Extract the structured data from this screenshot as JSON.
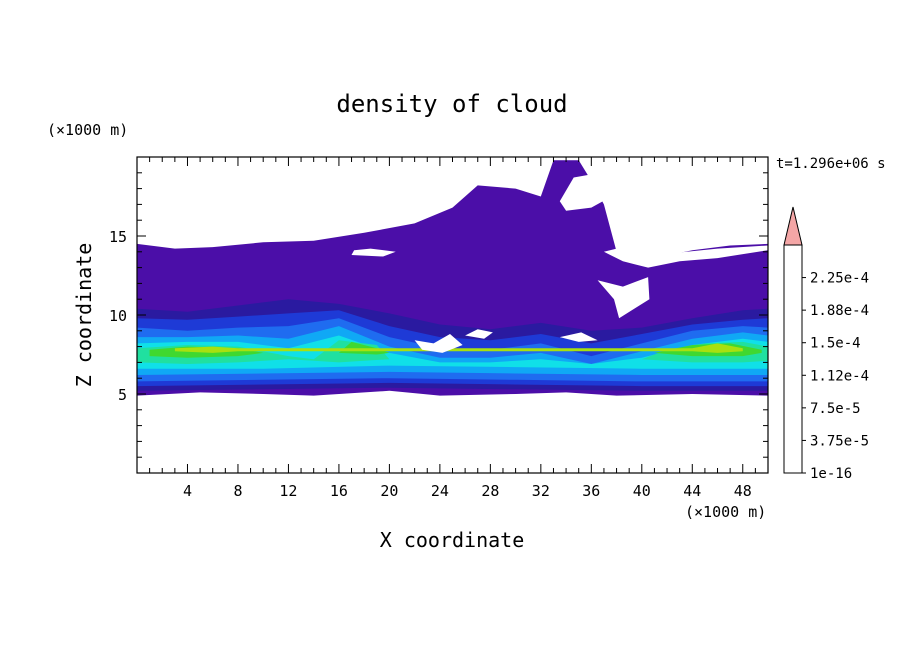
{
  "chart_data": {
    "type": "heatmap",
    "title": "density of cloud",
    "time_label": "t=1.296e+06 s",
    "xlabel": "X coordinate",
    "ylabel": "Z coordinate",
    "x_unit": "(×1000 m)",
    "y_unit": "(×1000 m)",
    "xlim": [
      0,
      50
    ],
    "ylim": [
      0,
      20
    ],
    "x_ticks": [
      "4",
      "8",
      "12",
      "16",
      "20",
      "24",
      "28",
      "32",
      "36",
      "40",
      "44",
      "48"
    ],
    "y_ticks": [
      "5",
      "10",
      "15"
    ],
    "colorbar": {
      "labels": [
        "1e-16",
        "3.75e-5",
        "7.5e-5",
        "1.12e-4",
        "1.5e-4",
        "1.88e-4",
        "2.25e-4"
      ],
      "colors": [
        "#4b0ea8",
        "#2a1aa0",
        "#1e3ad6",
        "#1f6cf0",
        "#10a8f5",
        "#10e0e8",
        "#20e0a0",
        "#40d830",
        "#a8e010",
        "#f0f000",
        "#f8b800",
        "#f88800",
        "#f85800",
        "#f02800"
      ],
      "over_color": "#f4a6a6"
    },
    "layers": [
      {
        "level": 0,
        "color": "#4b0ea8",
        "bottom": [
          [
            0,
            4.9
          ],
          [
            5,
            5.1
          ],
          [
            10,
            5.0
          ],
          [
            14,
            4.9
          ],
          [
            20,
            5.2
          ],
          [
            24,
            4.9
          ],
          [
            30,
            5.0
          ],
          [
            34,
            5.1
          ],
          [
            38,
            4.9
          ],
          [
            44,
            5.0
          ],
          [
            50,
            4.9
          ]
        ],
        "top": [
          [
            0,
            14.5
          ],
          [
            3,
            14.2
          ],
          [
            6,
            14.3
          ],
          [
            10,
            14.6
          ],
          [
            14,
            14.7
          ],
          [
            18,
            15.2
          ],
          [
            22,
            15.8
          ],
          [
            25,
            16.8
          ],
          [
            27,
            18.2
          ],
          [
            30,
            18.0
          ],
          [
            32,
            17.5
          ],
          [
            33,
            19.8
          ],
          [
            35,
            19.8
          ],
          [
            36,
            18.5
          ],
          [
            37,
            17.0
          ],
          [
            38,
            14.0
          ],
          [
            41,
            13.6
          ],
          [
            44,
            14.1
          ],
          [
            47,
            14.4
          ],
          [
            50,
            14.5
          ]
        ]
      },
      {
        "level": 1,
        "color": "#2a1aa0",
        "bottom": [
          [
            0,
            5.2
          ],
          [
            10,
            5.3
          ],
          [
            20,
            5.4
          ],
          [
            30,
            5.3
          ],
          [
            40,
            5.2
          ],
          [
            50,
            5.2
          ]
        ],
        "top": [
          [
            0,
            10.4
          ],
          [
            4,
            10.2
          ],
          [
            8,
            10.6
          ],
          [
            12,
            11.0
          ],
          [
            16,
            10.7
          ],
          [
            20,
            10.1
          ],
          [
            24,
            9.4
          ],
          [
            28,
            9.1
          ],
          [
            32,
            9.5
          ],
          [
            36,
            9.0
          ],
          [
            40,
            9.2
          ],
          [
            44,
            9.8
          ],
          [
            48,
            10.3
          ],
          [
            50,
            10.4
          ]
        ]
      },
      {
        "level": 2,
        "color": "#1e3ad6",
        "bottom": [
          [
            0,
            5.5
          ],
          [
            10,
            5.6
          ],
          [
            20,
            5.7
          ],
          [
            30,
            5.6
          ],
          [
            40,
            5.5
          ],
          [
            50,
            5.5
          ]
        ],
        "top": [
          [
            0,
            9.8
          ],
          [
            4,
            9.7
          ],
          [
            8,
            9.9
          ],
          [
            12,
            10.1
          ],
          [
            16,
            10.3
          ],
          [
            20,
            9.3
          ],
          [
            24,
            8.6
          ],
          [
            28,
            8.4
          ],
          [
            32,
            8.8
          ],
          [
            36,
            8.2
          ],
          [
            40,
            8.8
          ],
          [
            44,
            9.4
          ],
          [
            48,
            9.7
          ],
          [
            50,
            9.8
          ]
        ]
      },
      {
        "level": 3,
        "color": "#1f6cf0",
        "bottom": [
          [
            0,
            5.8
          ],
          [
            10,
            5.9
          ],
          [
            20,
            6.0
          ],
          [
            30,
            5.9
          ],
          [
            40,
            5.8
          ],
          [
            50,
            5.8
          ]
        ],
        "top": [
          [
            0,
            9.2
          ],
          [
            4,
            9.0
          ],
          [
            8,
            9.2
          ],
          [
            12,
            9.3
          ],
          [
            16,
            9.8
          ],
          [
            20,
            8.6
          ],
          [
            24,
            7.9
          ],
          [
            28,
            7.8
          ],
          [
            32,
            8.2
          ],
          [
            36,
            7.4
          ],
          [
            40,
            8.2
          ],
          [
            44,
            9.0
          ],
          [
            48,
            9.3
          ],
          [
            50,
            9.2
          ]
        ]
      },
      {
        "level": 4,
        "color": "#10a8f5",
        "bottom": [
          [
            0,
            6.2
          ],
          [
            10,
            6.3
          ],
          [
            20,
            6.4
          ],
          [
            30,
            6.3
          ],
          [
            40,
            6.2
          ],
          [
            50,
            6.2
          ]
        ],
        "top": [
          [
            0,
            8.6
          ],
          [
            4,
            8.6
          ],
          [
            8,
            8.7
          ],
          [
            12,
            8.5
          ],
          [
            16,
            9.3
          ],
          [
            20,
            8.0
          ],
          [
            24,
            7.3
          ],
          [
            28,
            7.3
          ],
          [
            32,
            7.6
          ],
          [
            36,
            6.9
          ],
          [
            40,
            7.7
          ],
          [
            44,
            8.5
          ],
          [
            48,
            8.9
          ],
          [
            50,
            8.7
          ]
        ]
      },
      {
        "level": 5,
        "color": "#10e0e8",
        "bottom": [
          [
            0,
            6.6
          ],
          [
            10,
            6.6
          ],
          [
            20,
            6.8
          ],
          [
            30,
            6.7
          ],
          [
            40,
            6.6
          ],
          [
            50,
            6.6
          ]
        ],
        "top": [
          [
            0,
            8.2
          ],
          [
            4,
            8.3
          ],
          [
            8,
            8.3
          ],
          [
            12,
            7.9
          ],
          [
            16,
            8.7
          ],
          [
            20,
            7.6
          ],
          [
            24,
            7.0
          ],
          [
            28,
            7.0
          ],
          [
            32,
            7.2
          ],
          [
            36,
            6.9
          ],
          [
            40,
            7.3
          ],
          [
            44,
            8.1
          ],
          [
            48,
            8.5
          ],
          [
            50,
            8.3
          ]
        ]
      },
      {
        "level": 6,
        "color": "#20e0a0",
        "bottom": [
          [
            0,
            7.0
          ],
          [
            4,
            6.9
          ],
          [
            8,
            7.0
          ],
          [
            12,
            7.2
          ],
          [
            14,
            7.1
          ],
          [
            16,
            7.0
          ],
          [
            20,
            7.2
          ],
          [
            40,
            7.2
          ],
          [
            44,
            7.0
          ],
          [
            48,
            7.0
          ],
          [
            50,
            7.1
          ]
        ],
        "top": [
          [
            0,
            7.9
          ],
          [
            4,
            8.1
          ],
          [
            8,
            8.0
          ],
          [
            12,
            7.4
          ],
          [
            14,
            7.2
          ],
          [
            16,
            8.4
          ],
          [
            19,
            8.1
          ],
          [
            20,
            7.2
          ],
          [
            40,
            7.2
          ],
          [
            42,
            7.8
          ],
          [
            45,
            8.2
          ],
          [
            48,
            8.3
          ],
          [
            50,
            8.0
          ]
        ]
      },
      {
        "level": 7,
        "color": "#40d830",
        "bottom": [
          [
            1,
            7.4
          ],
          [
            4,
            7.3
          ],
          [
            8,
            7.4
          ],
          [
            10,
            7.6
          ],
          [
            16,
            7.6
          ],
          [
            19,
            7.5
          ],
          [
            20,
            7.6
          ],
          [
            41,
            7.6
          ],
          [
            44,
            7.4
          ],
          [
            48,
            7.4
          ],
          [
            49.5,
            7.6
          ]
        ],
        "top": [
          [
            1,
            7.8
          ],
          [
            4,
            8.0
          ],
          [
            8,
            7.9
          ],
          [
            10,
            7.6
          ],
          [
            16,
            7.6
          ],
          [
            17,
            8.3
          ],
          [
            19,
            7.9
          ],
          [
            20,
            7.6
          ],
          [
            41,
            7.6
          ],
          [
            44,
            8.1
          ],
          [
            47,
            8.2
          ],
          [
            49.5,
            7.8
          ]
        ]
      },
      {
        "level": 8,
        "color": "#a8e010",
        "bottom": [
          [
            3,
            7.7
          ],
          [
            6,
            7.6
          ],
          [
            8,
            7.7
          ],
          [
            44,
            7.7
          ],
          [
            46,
            7.6
          ],
          [
            48,
            7.7
          ]
        ],
        "top": [
          [
            3,
            7.9
          ],
          [
            6,
            8.0
          ],
          [
            8,
            7.9
          ],
          [
            44,
            7.9
          ],
          [
            46,
            8.2
          ],
          [
            48,
            7.9
          ]
        ]
      }
    ],
    "gaps": [
      {
        "color": "#ffffff",
        "points": [
          [
            33.5,
            17.2
          ],
          [
            34,
            16.6
          ],
          [
            36,
            16.8
          ],
          [
            37.6,
            17.5
          ],
          [
            37.2,
            18.4
          ],
          [
            36.0,
            18.9
          ],
          [
            34.6,
            18.7
          ]
        ]
      },
      {
        "color": "#ffffff",
        "points": [
          [
            37.0,
            14.0
          ],
          [
            38.5,
            13.4
          ],
          [
            40.5,
            13.0
          ],
          [
            43.0,
            13.4
          ],
          [
            46.0,
            13.6
          ],
          [
            50,
            14.1
          ],
          [
            50,
            14.4
          ],
          [
            46,
            14.2
          ],
          [
            41,
            13.8
          ],
          [
            38,
            14.2
          ]
        ]
      },
      {
        "color": "#ffffff",
        "points": [
          [
            17,
            13.8
          ],
          [
            19.5,
            13.7
          ],
          [
            20.5,
            14.0
          ],
          [
            18.5,
            14.2
          ],
          [
            17.2,
            14.1
          ]
        ]
      },
      {
        "color": "#ffffff",
        "points": [
          [
            36.5,
            12.2
          ],
          [
            38.5,
            11.8
          ],
          [
            40.5,
            12.4
          ],
          [
            40.6,
            11.0
          ],
          [
            39.4,
            10.4
          ],
          [
            38.2,
            9.8
          ],
          [
            37.8,
            11.0
          ]
        ]
      },
      {
        "color": "#ffffff",
        "points": [
          [
            22.0,
            8.4
          ],
          [
            23.5,
            8.2
          ],
          [
            24.8,
            8.8
          ],
          [
            25.8,
            8.1
          ],
          [
            24.2,
            7.6
          ],
          [
            22.6,
            7.8
          ]
        ]
      },
      {
        "color": "#ffffff",
        "points": [
          [
            26.0,
            8.7
          ],
          [
            27.5,
            8.5
          ],
          [
            28.2,
            8.9
          ],
          [
            27.0,
            9.1
          ]
        ]
      },
      {
        "color": "#ffffff",
        "points": [
          [
            33.5,
            8.6
          ],
          [
            35.0,
            8.3
          ],
          [
            36.5,
            8.4
          ],
          [
            35.2,
            8.9
          ]
        ]
      }
    ]
  }
}
